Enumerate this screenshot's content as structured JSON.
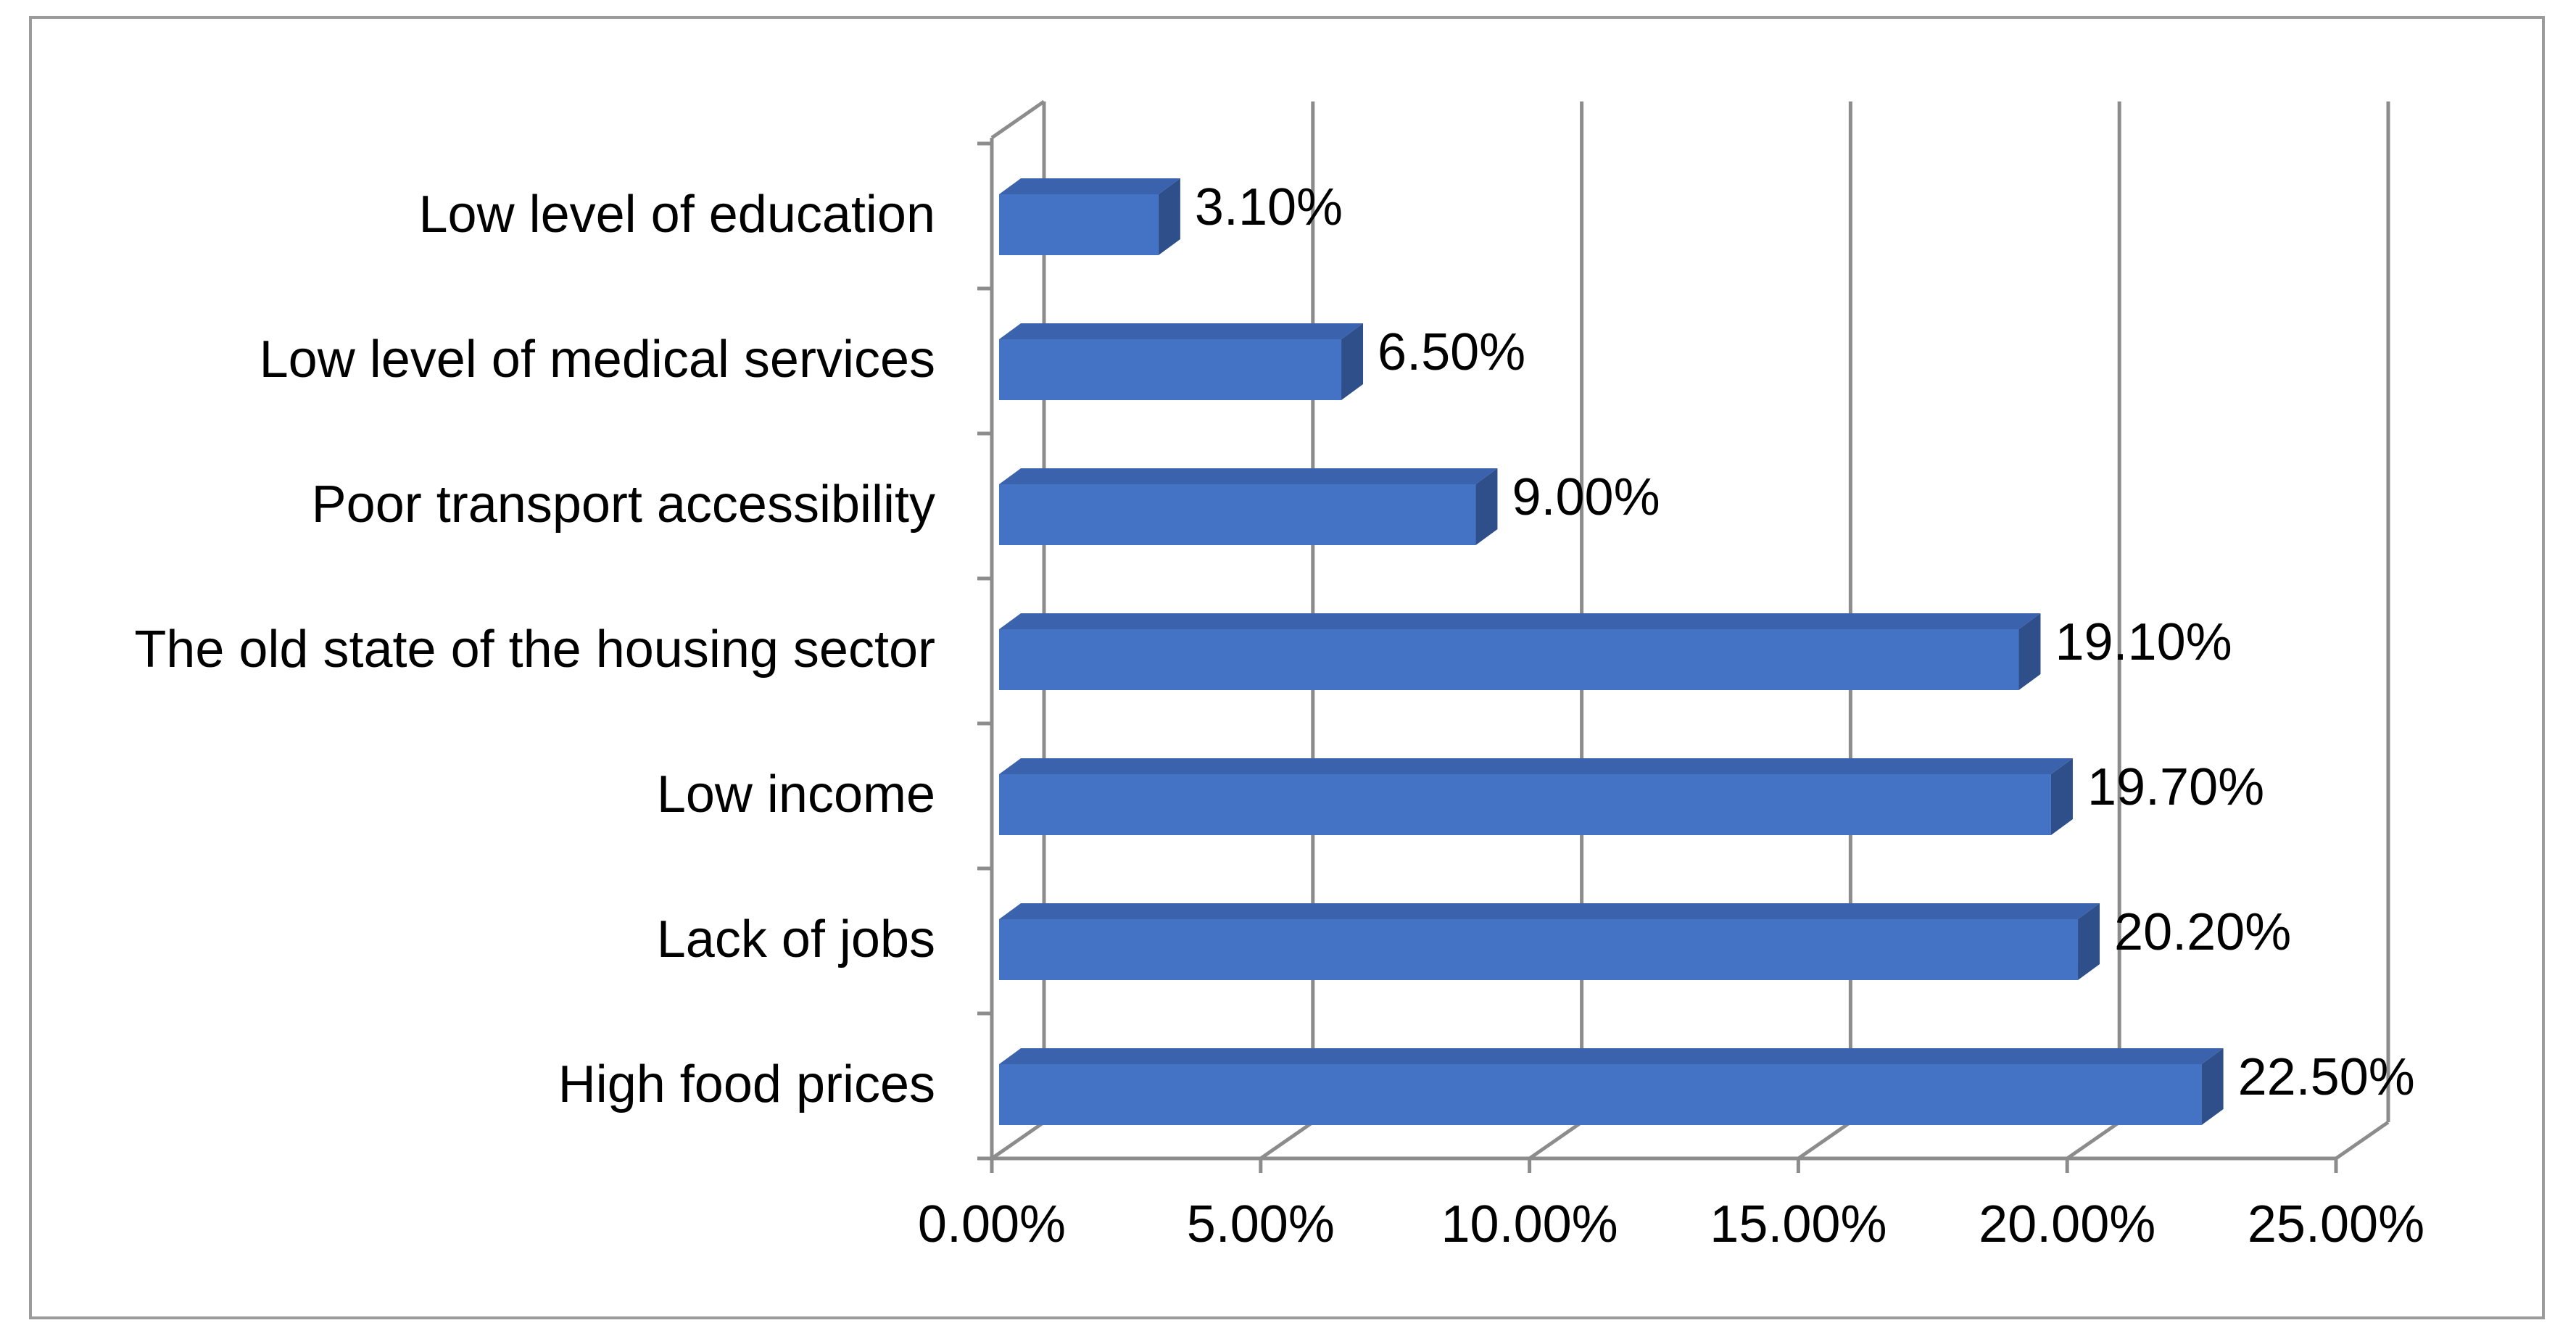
{
  "chart_data": {
    "type": "bar",
    "orientation": "horizontal",
    "style": "3d",
    "title": "",
    "xlabel": "",
    "ylabel": "",
    "categories": [
      "Low level of education",
      "Low level of medical services",
      "Poor transport accessibility",
      "The old state of the housing sector",
      "Low income",
      "Lack of jobs",
      "High food prices"
    ],
    "values": [
      3.1,
      6.5,
      9.0,
      19.1,
      19.7,
      20.2,
      22.5
    ],
    "value_labels": [
      "3.10%",
      "6.50%",
      "9.00%",
      "19.10%",
      "19.70%",
      "20.20%",
      "22.50%"
    ],
    "xlim": [
      0,
      25
    ],
    "ticks": [
      0,
      5,
      10,
      15,
      20,
      25
    ],
    "tick_labels": [
      "0.00%",
      "5.00%",
      "10.00%",
      "15.00%",
      "20.00%",
      "25.00%"
    ],
    "grid": true,
    "legend": "none",
    "colors": {
      "bar_front": "#4472c4",
      "bar_top": "#3b63ad",
      "bar_side": "#2f4f8a",
      "grid": "#8c8c8c",
      "frame": "#9b9b9b"
    }
  }
}
